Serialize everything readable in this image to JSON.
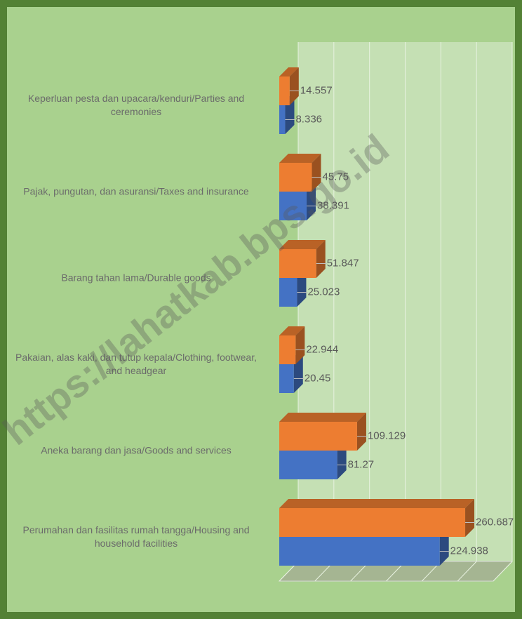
{
  "chart_data": {
    "type": "bar3d-horizontal",
    "categories": [
      "Keperluan pesta dan upacara/kenduri/Parties and ceremonies",
      "Pajak, pungutan, dan asuransi/Taxes and insurance",
      "Barang tahan lama/Durable goods",
      "Pakaian, alas kaki, dan tutup kepala/Clothing, footwear, and headgear",
      "Aneka barang dan jasa/Goods and services",
      "Perumahan dan fasilitas rumah tangga/Housing and household facilities"
    ],
    "series": [
      {
        "color": "#ed7d31",
        "values": [
          14.557,
          45.75,
          51.847,
          22.944,
          109.129,
          260.687
        ]
      },
      {
        "color": "#4472c4",
        "values": [
          8.336,
          38.391,
          25.023,
          20.45,
          81.27,
          224.938
        ]
      }
    ],
    "xlim": [
      0,
      300
    ],
    "xticks": [
      0,
      50,
      100,
      150,
      200,
      250,
      300
    ],
    "grid": true,
    "watermark": "https://lahatkab.bps.go.id"
  }
}
